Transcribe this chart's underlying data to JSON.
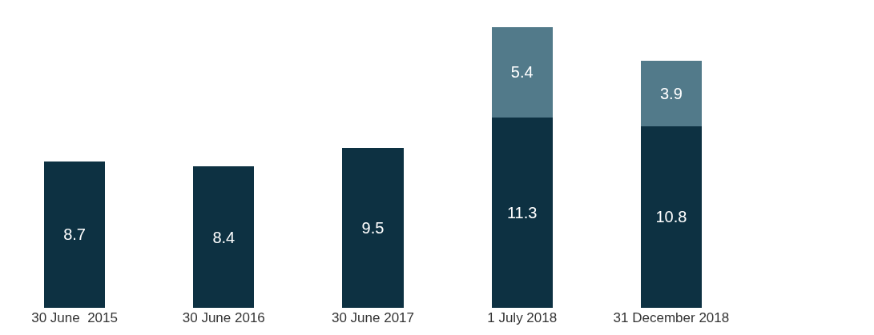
{
  "chart_data": {
    "type": "bar",
    "stacked": true,
    "data_labels": true,
    "grid": false,
    "tick_labels": "x",
    "categories": [
      "30 June  2015",
      "30 June 2016",
      "30 June 2017",
      "1 July 2018",
      "31 December 2018"
    ],
    "series": [
      {
        "color": "#0d3142",
        "values": [
          8.7,
          8.4,
          9.5,
          11.3,
          10.8
        ]
      },
      {
        "color": "#527a8a",
        "values": [
          null,
          null,
          null,
          5.4,
          3.9
        ]
      }
    ]
  }
}
